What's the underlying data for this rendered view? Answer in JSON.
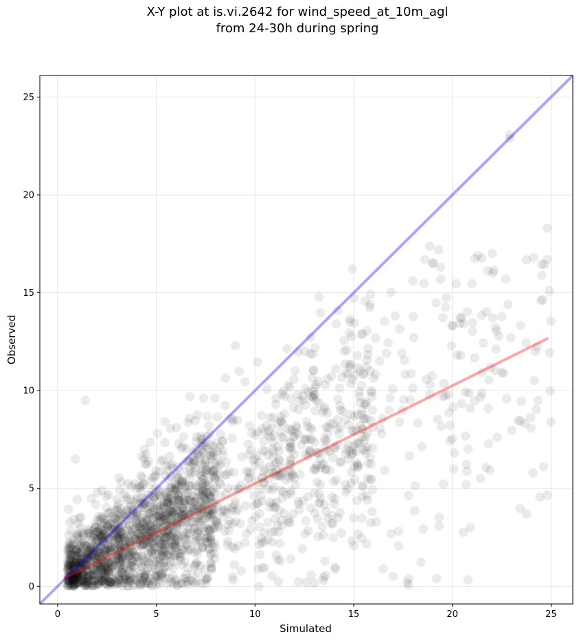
{
  "chart_data": {
    "type": "scatter",
    "title_line1": "X-Y plot at is.vi.2642 for wind_speed_at_10m_agl",
    "title_line2": "from 24-30h during spring",
    "xlabel": "Simulated",
    "ylabel": "Observed",
    "xlim": [
      -0.9,
      26.1
    ],
    "ylim": [
      -0.9,
      26.1
    ],
    "xticks": [
      0,
      5,
      10,
      15,
      20,
      25
    ],
    "yticks": [
      0,
      5,
      10,
      15,
      20,
      25
    ],
    "grid": true,
    "reference_line": {
      "slope": 1,
      "intercept": 0,
      "color": "#0000ff",
      "alpha": 0.35
    },
    "fit_line": {
      "x": [
        0.4,
        24.8
      ],
      "y": [
        0.45,
        12.65
      ],
      "color": "#ff0000",
      "alpha": 0.35
    },
    "marker_color": "#000000",
    "marker_alpha": 0.08,
    "highlighted_points": {
      "x": [
        1.4,
        0.9,
        24.8,
        24.8,
        19.3,
        19.4,
        21.3,
        22.7,
        24.1,
        18.0,
        20.9,
        20.9,
        20.7,
        12.6,
        16.5,
        10.2,
        6.7,
        17.0,
        9.0,
        5.0,
        15.0,
        19.2
      ],
      "y": [
        9.5,
        6.5,
        18.3,
        16.7,
        17.2,
        16.3,
        16.9,
        15.7,
        16.8,
        15.6,
        3.0,
        9.1,
        5.2,
        0.2,
        0.9,
        0.0,
        9.7,
        0.5,
        12.3,
        0.1,
        2.1,
        0.4
      ]
    }
  }
}
